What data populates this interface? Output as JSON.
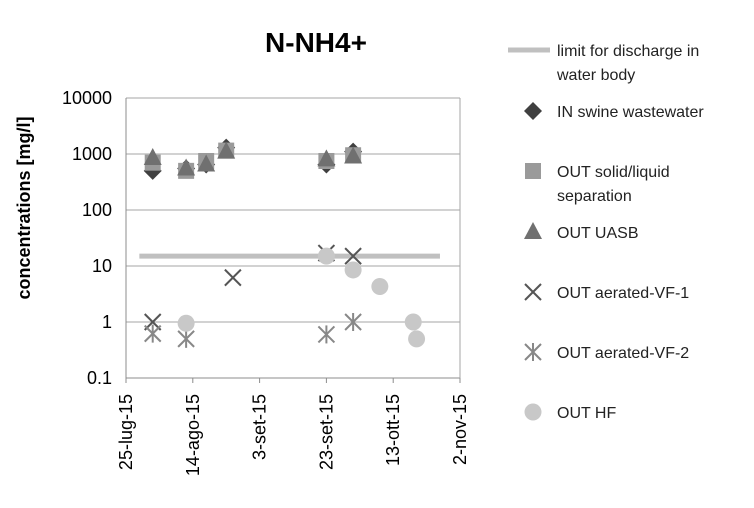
{
  "chart_data": {
    "type": "scatter",
    "title": "N-NH4+",
    "xlabel": "",
    "ylabel": "concentrations [mg/l]",
    "yscale": "log",
    "ylim": [
      0.1,
      10000
    ],
    "yticks": [
      {
        "value": 0.1,
        "label": "0.1"
      },
      {
        "value": 1,
        "label": "1"
      },
      {
        "value": 10,
        "label": "10"
      },
      {
        "value": 100,
        "label": "100"
      },
      {
        "value": 1000,
        "label": "1000"
      },
      {
        "value": 10000,
        "label": "10000"
      }
    ],
    "xlim": [
      "2015-07-25",
      "2015-11-02"
    ],
    "xticks": [
      {
        "value": "2015-07-25",
        "label": "25-lug-15"
      },
      {
        "value": "2015-08-14",
        "label": "14-ago-15"
      },
      {
        "value": "2015-09-03",
        "label": "3-set-15"
      },
      {
        "value": "2015-09-23",
        "label": "23-set-15"
      },
      {
        "value": "2015-10-13",
        "label": "13-ott-15"
      },
      {
        "value": "2015-11-02",
        "label": "2-nov-15"
      }
    ],
    "grid": "horizontal",
    "legend_position": "right",
    "series": [
      {
        "name": "limit for discharge in water body",
        "kind": "line",
        "color": "#c0c0c0",
        "points": [
          {
            "x": "2015-07-29",
            "y": 15
          },
          {
            "x": "2015-10-27",
            "y": 15
          }
        ]
      },
      {
        "name": "IN swine wastewater",
        "marker": "diamond",
        "color": "#404040",
        "points": [
          {
            "x": "2015-08-02",
            "y": 500
          },
          {
            "x": "2015-08-12",
            "y": 550
          },
          {
            "x": "2015-08-18",
            "y": 650
          },
          {
            "x": "2015-08-24",
            "y": 1300
          },
          {
            "x": "2015-09-23",
            "y": 650
          },
          {
            "x": "2015-10-01",
            "y": 1100
          }
        ]
      },
      {
        "name": "OUT solid/liquid separation",
        "marker": "square",
        "color": "#9a9a9a",
        "points": [
          {
            "x": "2015-08-02",
            "y": 700
          },
          {
            "x": "2015-08-12",
            "y": 500
          },
          {
            "x": "2015-08-18",
            "y": 750
          },
          {
            "x": "2015-08-24",
            "y": 1150
          },
          {
            "x": "2015-09-23",
            "y": 750
          },
          {
            "x": "2015-10-01",
            "y": 950
          }
        ]
      },
      {
        "name": "OUT UASB",
        "marker": "triangle",
        "color": "#707070",
        "points": [
          {
            "x": "2015-08-02",
            "y": 850
          },
          {
            "x": "2015-08-12",
            "y": 550
          },
          {
            "x": "2015-08-18",
            "y": 650
          },
          {
            "x": "2015-08-24",
            "y": 1100
          },
          {
            "x": "2015-09-23",
            "y": 800
          },
          {
            "x": "2015-10-01",
            "y": 900
          }
        ]
      },
      {
        "name": "OUT aerated-VF-1",
        "marker": "x",
        "color": "#555555",
        "points": [
          {
            "x": "2015-08-02",
            "y": 1.0
          },
          {
            "x": "2015-08-26",
            "y": 6.2
          },
          {
            "x": "2015-09-23",
            "y": 17
          },
          {
            "x": "2015-10-01",
            "y": 15
          }
        ]
      },
      {
        "name": "OUT aerated-VF-2",
        "marker": "star",
        "color": "#888888",
        "points": [
          {
            "x": "2015-08-02",
            "y": 0.62
          },
          {
            "x": "2015-08-12",
            "y": 0.5
          },
          {
            "x": "2015-09-23",
            "y": 0.6
          },
          {
            "x": "2015-10-01",
            "y": 1.0
          }
        ]
      },
      {
        "name": "OUT HF",
        "marker": "circle",
        "color": "#c8c8c8",
        "points": [
          {
            "x": "2015-08-12",
            "y": 0.95
          },
          {
            "x": "2015-09-23",
            "y": 15
          },
          {
            "x": "2015-10-01",
            "y": 8.5
          },
          {
            "x": "2015-10-09",
            "y": 4.3
          },
          {
            "x": "2015-10-19",
            "y": 1.0
          },
          {
            "x": "2015-10-20",
            "y": 0.5
          }
        ]
      }
    ]
  }
}
